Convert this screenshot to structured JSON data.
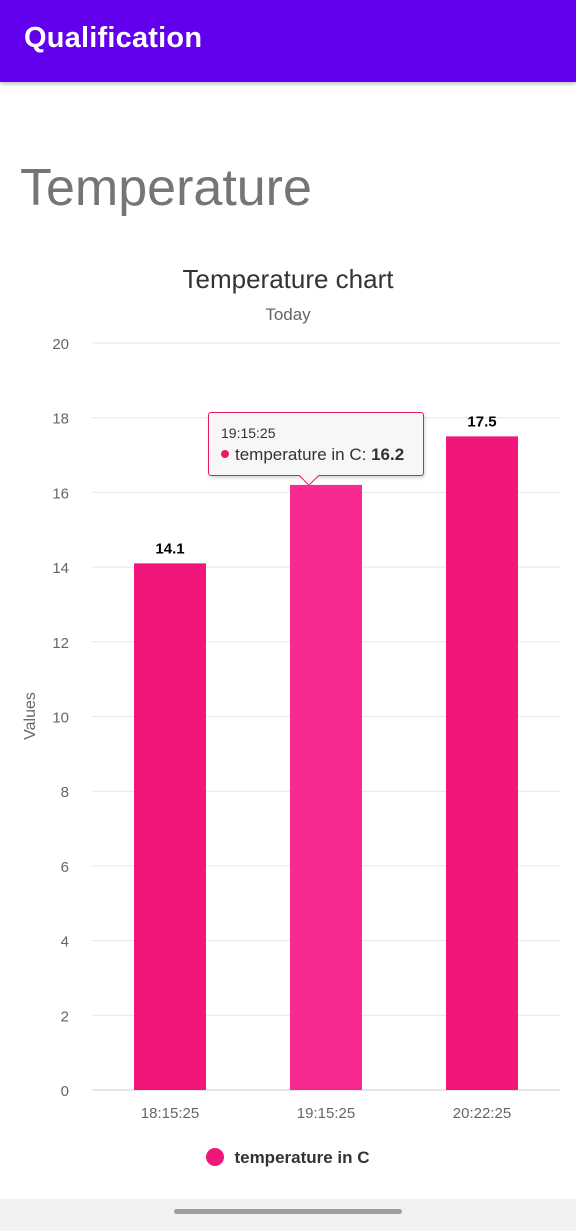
{
  "app": {
    "title": "Qualification"
  },
  "page": {
    "title": "Temperature"
  },
  "chart_data": {
    "type": "bar",
    "title": "Temperature chart",
    "subtitle": "Today",
    "xlabel": "",
    "ylabel": "Values",
    "categories": [
      "18:15:25",
      "19:15:25",
      "20:22:25"
    ],
    "series": [
      {
        "name": "temperature in C",
        "values": [
          14.1,
          16.2,
          17.5
        ]
      }
    ],
    "ylim": [
      0,
      20
    ],
    "yticks": [
      0,
      2,
      4,
      6,
      8,
      10,
      12,
      14,
      16,
      18,
      20
    ],
    "grid": true,
    "legend": "bottom-center",
    "highlighted_index": 1,
    "colors": {
      "bar": "#f1177a",
      "bar_highlight": "#f72a90",
      "tooltip_border": "#e6196b"
    }
  },
  "tooltip": {
    "header": "19:15:25",
    "series_label": "temperature in C: ",
    "value": "16.2"
  },
  "legend": {
    "label": "temperature in C"
  },
  "colors": {
    "app_bar": "#6200ee"
  }
}
